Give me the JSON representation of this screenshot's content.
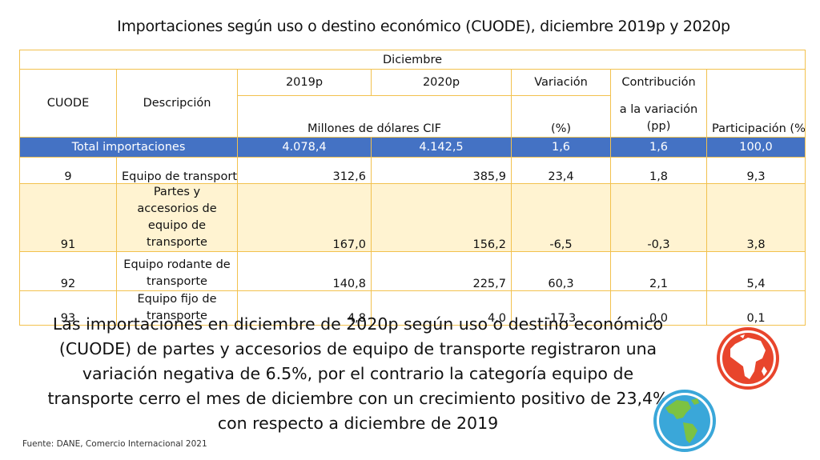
{
  "title": "Importaciones según uso o destino económico (CUODE), diciembre 2019p y 2020p",
  "table": {
    "period_header": "Diciembre",
    "col_cuode": "CUODE",
    "col_descripcion": "Descripción",
    "col_2019": "2019p",
    "col_2020": "2020p",
    "col_variacion": "Variación",
    "col_contribucion": "Contribución",
    "unit_millones": "Millones de dólares CIF",
    "unit_pct": "(%)",
    "contrib_sub": "a la variación (pp)",
    "col_participacion": "Participación (%)",
    "total": {
      "label": "Total importaciones",
      "v2019": "4.078,4",
      "v2020": "4.142,5",
      "variacion": "1,6",
      "contribucion": "1,6",
      "participacion": "100,0"
    },
    "rows": [
      {
        "cuode": "9",
        "descripcion": "Equipo de transporte",
        "v2019": "312,6",
        "v2020": "385,9",
        "variacion": "23,4",
        "contribucion": "1,8",
        "participacion": "9,3"
      },
      {
        "cuode": "91",
        "descripcion": "Partes y accesorios de equipo de transporte",
        "v2019": "167,0",
        "v2020": "156,2",
        "variacion": "-6,5",
        "contribucion": "-0,3",
        "participacion": "3,8"
      },
      {
        "cuode": "92",
        "descripcion": "Equipo rodante de transporte",
        "v2019": "140,8",
        "v2020": "225,7",
        "variacion": "60,3",
        "contribucion": "2,1",
        "participacion": "5,4"
      },
      {
        "cuode": "93",
        "descripcion": "Equipo fijo de transporte",
        "v2019": "4,8",
        "v2020": "4,0",
        "variacion": "-17,3",
        "contribucion": "0,0",
        "participacion": "0,1"
      }
    ]
  },
  "narrative": "Las importaciones en diciembre de 2020p según uso o destino económico (CUODE) de partes y accesorios de equipo de transporte registraron una variación negativa de 6.5%, por el contrario la categoría equipo de transporte cerro el mes de diciembre con un crecimiento positivo de 23,4% con respecto a diciembre de 2019",
  "source": "Fuente: DANE, Comercio Internacional 2021",
  "icons": {
    "africa_globe": "globe-africa-icon",
    "americas_globe": "globe-americas-icon"
  },
  "colors": {
    "accent_blue": "#4472c4",
    "border_gold": "#f2c14e",
    "row_highlight": "#fff3d1",
    "globe_red": "#e8452c",
    "globe_blue": "#3aa7d9"
  }
}
